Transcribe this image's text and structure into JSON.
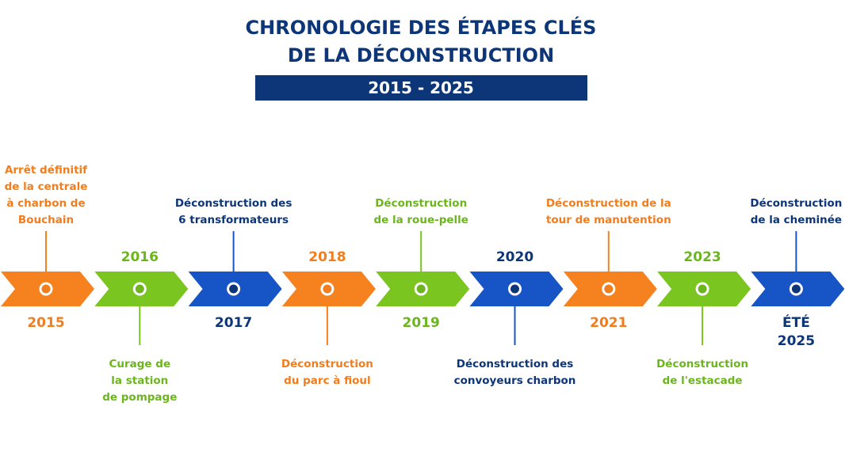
{
  "header": {
    "title": [
      "CHRONOLOGIE DES ÉTAPES CLÉS",
      "DE LA DÉCONSTRUCTION"
    ],
    "subtitle": "2015 - 2025"
  },
  "steps": [
    {
      "year": [
        "2015"
      ],
      "label": [
        "Arrêt définitif",
        "de la centrale",
        "à charbon de",
        "Bouchain"
      ]
    },
    {
      "year": [
        "2016"
      ],
      "label": [
        "Curage de",
        "la station",
        "de pompage"
      ]
    },
    {
      "year": [
        "2017"
      ],
      "label": [
        "Déconstruction des",
        "6 transformateurs"
      ]
    },
    {
      "year": [
        "2018"
      ],
      "label": [
        "Déconstruction",
        "du parc à fioul"
      ]
    },
    {
      "year": [
        "2019"
      ],
      "label": [
        "Déconstruction",
        "de la roue-pelle"
      ]
    },
    {
      "year": [
        "2020"
      ],
      "label": [
        "Déconstruction des",
        "convoyeurs charbon"
      ]
    },
    {
      "year": [
        "2021"
      ],
      "label": [
        "Déconstruction de la",
        "tour de manutention"
      ]
    },
    {
      "year": [
        "2023"
      ],
      "label": [
        "Déconstruction",
        "de l'estacade"
      ]
    },
    {
      "year": [
        "ÉTÉ",
        "2025"
      ],
      "label": [
        "Déconstruction",
        "de la cheminée"
      ]
    }
  ]
}
